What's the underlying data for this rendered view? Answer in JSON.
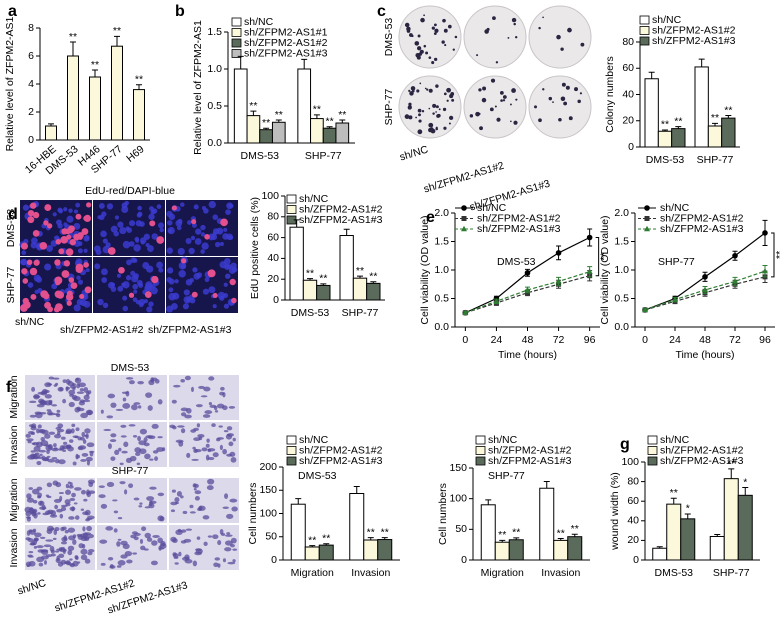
{
  "chart_data": [
    {
      "type": "bar",
      "panel": "a",
      "ylabel": "Relative level of ZFPM2-AS1",
      "categories": [
        "16-HBE",
        "DMS-53",
        "H446",
        "SHP-77",
        "H69"
      ],
      "values": [
        1.0,
        6.0,
        4.5,
        6.7,
        3.6
      ],
      "errors": [
        0.15,
        1.0,
        0.5,
        0.7,
        0.35
      ],
      "stars": [
        null,
        "**",
        "**",
        "**",
        "**"
      ],
      "color": "#fbf8dc",
      "ylim": [
        0,
        8
      ],
      "yticks": [
        0,
        2,
        4,
        6,
        8
      ],
      "rotate_x_labels": true
    },
    {
      "type": "bar",
      "panel": "b",
      "ylabel": "Relative level of ZFPM2-AS1",
      "categories": [
        "DMS-53",
        "SHP-77"
      ],
      "series": [
        {
          "name": "sh/NC",
          "color": "#ffffff",
          "values": [
            1.0,
            1.0
          ],
          "errors": [
            0.17,
            0.13
          ],
          "stars": [
            null,
            null
          ]
        },
        {
          "name": "sh/ZFPM2-AS1#1",
          "color": "#fbf8dc",
          "values": [
            0.37,
            0.33
          ],
          "errors": [
            0.06,
            0.05
          ],
          "stars": [
            "**",
            "**"
          ]
        },
        {
          "name": "sh/ZFPM2-AS1#2",
          "color": "#5b6b5b",
          "values": [
            0.18,
            0.2
          ],
          "errors": [
            0.02,
            0.02
          ],
          "stars": [
            "**",
            "**"
          ]
        },
        {
          "name": "sh/ZFPM2-AS1#3",
          "color": "#bdbdbd",
          "values": [
            0.28,
            0.27
          ],
          "errors": [
            0.03,
            0.04
          ],
          "stars": [
            "**",
            "**"
          ]
        }
      ],
      "ylim": [
        0,
        1.5
      ],
      "yticks": [
        {
          "value": 0,
          "label": "0.0"
        },
        0.5,
        {
          "value": 1,
          "label": "1.0"
        },
        1.5
      ]
    },
    {
      "type": "bar",
      "ylabel": "Colony numbers",
      "categories": [
        "DMS-53",
        "SHP-77"
      ],
      "series": [
        {
          "name": "sh/NC",
          "color": "#ffffff",
          "values": [
            52,
            61
          ],
          "errors": [
            5,
            6
          ],
          "stars": [
            null,
            null
          ]
        },
        {
          "name": "sh/ZFPM2-AS1#2",
          "color": "#fbf8dc",
          "values": [
            12,
            16
          ],
          "errors": [
            1,
            2
          ],
          "stars": [
            "**",
            "**"
          ]
        },
        {
          "name": "sh/ZFPM2-AS1#3",
          "color": "#5b6b5b",
          "values": [
            14,
            22
          ],
          "errors": [
            1.5,
            2
          ],
          "stars": [
            "**",
            "**"
          ]
        }
      ],
      "ylim": [
        0,
        80
      ],
      "yticks": [
        0,
        20,
        40,
        60,
        80
      ]
    },
    {
      "type": "bar",
      "ylabel": "EdU positive cells (%)",
      "categories": [
        "DMS-53",
        "SHP-77"
      ],
      "series": [
        {
          "name": "sh/NC",
          "color": "#ffffff",
          "values": [
            70,
            62
          ],
          "errors": [
            7,
            6
          ],
          "stars": [
            null,
            null
          ]
        },
        {
          "name": "sh/ZFPM2-AS1#2",
          "color": "#fbf8dc",
          "values": [
            19,
            21
          ],
          "errors": [
            1.5,
            2
          ],
          "stars": [
            "**",
            "**"
          ]
        },
        {
          "name": "sh/ZFPM2-AS1#3",
          "color": "#5b6b5b",
          "values": [
            14,
            16
          ],
          "errors": [
            1.5,
            1.5
          ],
          "stars": [
            "**",
            "**"
          ]
        }
      ],
      "ylim": [
        0,
        100
      ],
      "yticks": [
        0,
        20,
        40,
        60,
        80,
        100
      ]
    },
    {
      "type": "line",
      "panel": "e",
      "title": "DMS-53",
      "xlabel": "Time (hours)",
      "ylabel": "Cell viability (OD value)",
      "x": [
        0,
        24,
        48,
        72,
        96
      ],
      "xlim": [
        -8,
        104
      ],
      "xticks": [
        0,
        24,
        48,
        72,
        96
      ],
      "series": [
        {
          "name": "sh/NC",
          "color": "#000000",
          "marker": "circle",
          "dashed": false,
          "values": [
            0.25,
            0.5,
            0.95,
            1.3,
            1.57
          ],
          "errors": [
            0.02,
            0.04,
            0.06,
            0.12,
            0.15
          ]
        },
        {
          "name": "sh/ZFPM2-AS1#2",
          "color": "#333333",
          "marker": "square",
          "dashed": true,
          "values": [
            0.25,
            0.42,
            0.6,
            0.75,
            0.9
          ],
          "errors": [
            0.02,
            0.04,
            0.05,
            0.07,
            0.09
          ]
        },
        {
          "name": "sh/ZFPM2-AS1#3",
          "color": "#2e7d32",
          "marker": "triangle",
          "dashed": true,
          "values": [
            0.25,
            0.45,
            0.65,
            0.8,
            0.97
          ],
          "errors": [
            0.02,
            0.04,
            0.05,
            0.07,
            0.09
          ]
        }
      ],
      "bracket_label": "**",
      "ylim": [
        0,
        2
      ],
      "yticks": [
        {
          "value": 0,
          "label": "0.0"
        },
        0.5,
        {
          "value": 1,
          "label": "1.0"
        },
        1.5,
        {
          "value": 2,
          "label": "2.0"
        }
      ]
    },
    {
      "type": "line",
      "title": "SHP-77",
      "xlabel": "Time (hours)",
      "ylabel": "Cell viability (OD value)",
      "x": [
        0,
        24,
        48,
        72,
        96
      ],
      "xlim": [
        -8,
        104
      ],
      "xticks": [
        0,
        24,
        48,
        72,
        96
      ],
      "series": [
        {
          "name": "sh/NC",
          "color": "#000000",
          "marker": "circle",
          "dashed": false,
          "values": [
            0.3,
            0.5,
            0.88,
            1.25,
            1.65
          ],
          "errors": [
            0.02,
            0.04,
            0.08,
            0.08,
            0.22
          ]
        },
        {
          "name": "sh/ZFPM2-AS1#2",
          "color": "#333333",
          "marker": "square",
          "dashed": true,
          "values": [
            0.3,
            0.45,
            0.6,
            0.75,
            0.88
          ],
          "errors": [
            0.02,
            0.04,
            0.06,
            0.07,
            0.1
          ]
        },
        {
          "name": "sh/ZFPM2-AS1#3",
          "color": "#2e7d32",
          "marker": "triangle",
          "dashed": true,
          "values": [
            0.3,
            0.48,
            0.65,
            0.8,
            0.98
          ],
          "errors": [
            0.02,
            0.04,
            0.06,
            0.07,
            0.1
          ]
        }
      ],
      "bracket_label": "**",
      "ylim": [
        0,
        2
      ],
      "yticks": [
        {
          "value": 0,
          "label": "0.0"
        },
        0.5,
        {
          "value": 1,
          "label": "1.0"
        },
        1.5,
        {
          "value": 2,
          "label": "2.0"
        }
      ]
    },
    {
      "type": "bar",
      "title": "DMS-53",
      "ylabel": "Cell numbers",
      "categories": [
        "Migration",
        "Invasion"
      ],
      "series": [
        {
          "name": "sh/NC",
          "color": "#ffffff",
          "values": [
            120,
            143
          ],
          "errors": [
            12,
            15
          ],
          "stars": [
            null,
            null
          ]
        },
        {
          "name": "sh/ZFPM2-AS1#2",
          "color": "#fbf8dc",
          "values": [
            28,
            43
          ],
          "errors": [
            3,
            5
          ],
          "stars": [
            "**",
            "**"
          ]
        },
        {
          "name": "sh/ZFPM2-AS1#3",
          "color": "#5b6b5b",
          "values": [
            32,
            44
          ],
          "errors": [
            3,
            4
          ],
          "stars": [
            "**",
            "**"
          ]
        }
      ],
      "ylim": [
        0,
        200
      ],
      "yticks": [
        0,
        50,
        100,
        150,
        200
      ]
    },
    {
      "type": "bar",
      "title": "SHP-77",
      "ylabel": "Cell numbers",
      "categories": [
        "Migration",
        "Invasion"
      ],
      "series": [
        {
          "name": "sh/NC",
          "color": "#ffffff",
          "values": [
            90,
            117
          ],
          "errors": [
            8,
            11
          ],
          "stars": [
            null,
            null
          ]
        },
        {
          "name": "sh/ZFPM2-AS1#2",
          "color": "#fbf8dc",
          "values": [
            29,
            32
          ],
          "errors": [
            3,
            3
          ],
          "stars": [
            "**",
            "**"
          ]
        },
        {
          "name": "sh/ZFPM2-AS1#3",
          "color": "#5b6b5b",
          "values": [
            33,
            38
          ],
          "errors": [
            3,
            4
          ],
          "stars": [
            "**",
            "**"
          ]
        }
      ],
      "ylim": [
        0,
        150
      ],
      "yticks": [
        0,
        50,
        100,
        150
      ]
    },
    {
      "type": "bar",
      "panel": "g",
      "ylabel": "wound width (%)",
      "categories": [
        "DMS-53",
        "SHP-77"
      ],
      "series": [
        {
          "name": "sh/NC",
          "color": "#ffffff",
          "values": [
            12,
            24
          ],
          "errors": [
            1.5,
            2
          ],
          "stars": [
            null,
            null
          ]
        },
        {
          "name": "sh/ZFPM2-AS1#2",
          "color": "#fbf8dc",
          "values": [
            57,
            83
          ],
          "errors": [
            6,
            10
          ],
          "stars": [
            "**",
            "**"
          ]
        },
        {
          "name": "sh/ZFPM2-AS1#3",
          "color": "#5b6b5b",
          "values": [
            42,
            66
          ],
          "errors": [
            5,
            8
          ],
          "stars": [
            "*",
            "*"
          ]
        }
      ],
      "ylim": [
        0,
        100
      ],
      "yticks": [
        0,
        20,
        40,
        60,
        80,
        100
      ]
    }
  ],
  "image_panels": [
    {
      "panel": "c",
      "rows": [
        "DMS-53",
        "SHP-77"
      ],
      "columns": [
        "sh/NC",
        "sh/ZFPM2-AS1#2",
        "sh/ZFPM2-AS1#3"
      ]
    },
    {
      "panel": "d",
      "title": "EdU-red/DAPI-blue",
      "rows": [
        "DMS-53",
        "SHP-77"
      ],
      "columns": [
        "sh/NC",
        "sh/ZFPM2-AS1#2",
        "sh/ZFPM2-AS1#3"
      ]
    },
    {
      "panel": "f",
      "groups": [
        {
          "title": "DMS-53",
          "rows": [
            "Invasion",
            "Migration"
          ]
        },
        {
          "title": "SHP-77",
          "rows": [
            "Invasion",
            "Migration"
          ]
        }
      ],
      "columns": [
        "sh/NC",
        "sh/ZFPM2-AS1#2",
        "sh/ZFPM2-AS1#3"
      ]
    }
  ]
}
